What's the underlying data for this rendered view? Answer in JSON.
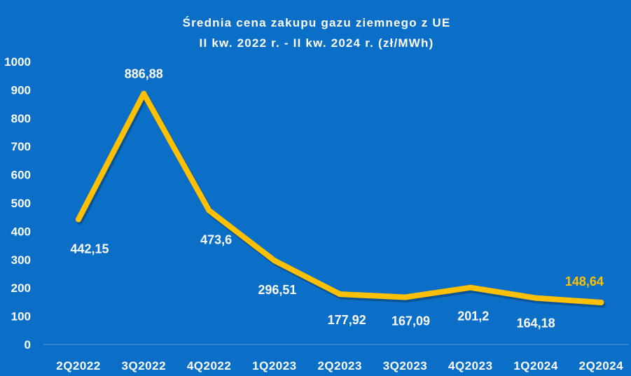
{
  "chart_data": {
    "type": "line",
    "title": "Średnia cena zakupu gazu ziemnego z UE",
    "subtitle": "II kw. 2022 r. - II kw. 2024 r. (zł/MWh)",
    "xlabel": "",
    "ylabel": "",
    "categories": [
      "2Q2022",
      "3Q2022",
      "4Q2022",
      "1Q2023",
      "2Q2023",
      "3Q2023",
      "4Q2023",
      "1Q2024",
      "2Q2024"
    ],
    "values": [
      442.15,
      886.88,
      473.6,
      296.51,
      177.92,
      167.09,
      201.2,
      164.18,
      148.64
    ],
    "data_labels": [
      "442,15",
      "886,88",
      "473,6",
      "296,51",
      "177,92",
      "167,09",
      "201,2",
      "164,18",
      "148,64"
    ],
    "ylim": [
      0,
      1000
    ],
    "yticks": [
      "0",
      "100",
      "200",
      "300",
      "400",
      "500",
      "600",
      "700",
      "800",
      "900",
      "1000"
    ],
    "grid": false,
    "colors": {
      "background": "#0B6FC8",
      "line": "#FFC000",
      "text": "#FFFFFF",
      "highlight_label": "#FFC000"
    }
  }
}
